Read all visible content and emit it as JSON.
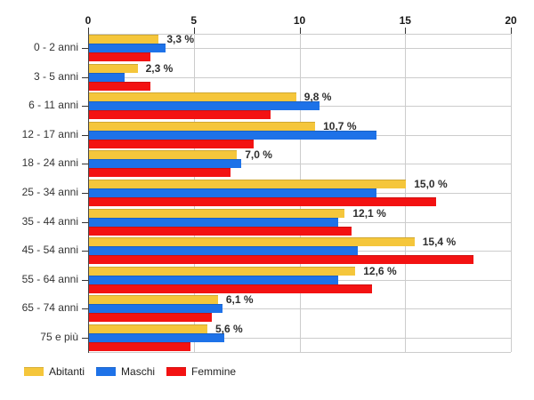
{
  "chart_data": {
    "type": "bar",
    "orientation": "horizontal",
    "title": "",
    "categories": [
      "0 - 2 anni",
      "3 - 5 anni",
      "6 - 11 anni",
      "12 - 17 anni",
      "18 - 24 anni",
      "25 - 34 anni",
      "35 - 44 anni",
      "45 - 54 anni",
      "55 - 64 anni",
      "65 - 74 anni",
      "75 e più"
    ],
    "series": [
      {
        "name": "Abitanti",
        "color": "#F5C63B",
        "values": [
          3.3,
          2.3,
          9.8,
          10.7,
          7.0,
          15.0,
          12.1,
          15.4,
          12.6,
          6.1,
          5.6
        ]
      },
      {
        "name": "Maschi",
        "color": "#1E72E8",
        "values": [
          3.6,
          1.7,
          10.9,
          13.6,
          7.2,
          13.6,
          11.8,
          12.7,
          11.8,
          6.3,
          6.4
        ]
      },
      {
        "name": "Femmine",
        "color": "#F31212",
        "values": [
          2.9,
          2.9,
          8.6,
          7.8,
          6.7,
          16.4,
          12.4,
          18.2,
          13.4,
          5.8,
          4.8
        ]
      }
    ],
    "value_labels": [
      "3,3 %",
      "2,3 %",
      "9,8 %",
      "10,7 %",
      "7,0 %",
      "15,0 %",
      "12,1 %",
      "15,4 %",
      "12,6 %",
      "6,1 %",
      "5,6 %"
    ],
    "value_labels_on_series": "Abitanti",
    "xlim": [
      0,
      20
    ],
    "x_tick_values": [
      0,
      5,
      10,
      15,
      20
    ],
    "x_tick_labels": [
      "0",
      "5",
      "10",
      "15",
      "20"
    ],
    "grid": true,
    "gridline_color": "#CCCCCC",
    "axis_color": "#444444",
    "legend_position": "bottom-left"
  },
  "legend": {
    "items": [
      {
        "label": "Abitanti"
      },
      {
        "label": "Maschi"
      },
      {
        "label": "Femmine"
      }
    ]
  }
}
